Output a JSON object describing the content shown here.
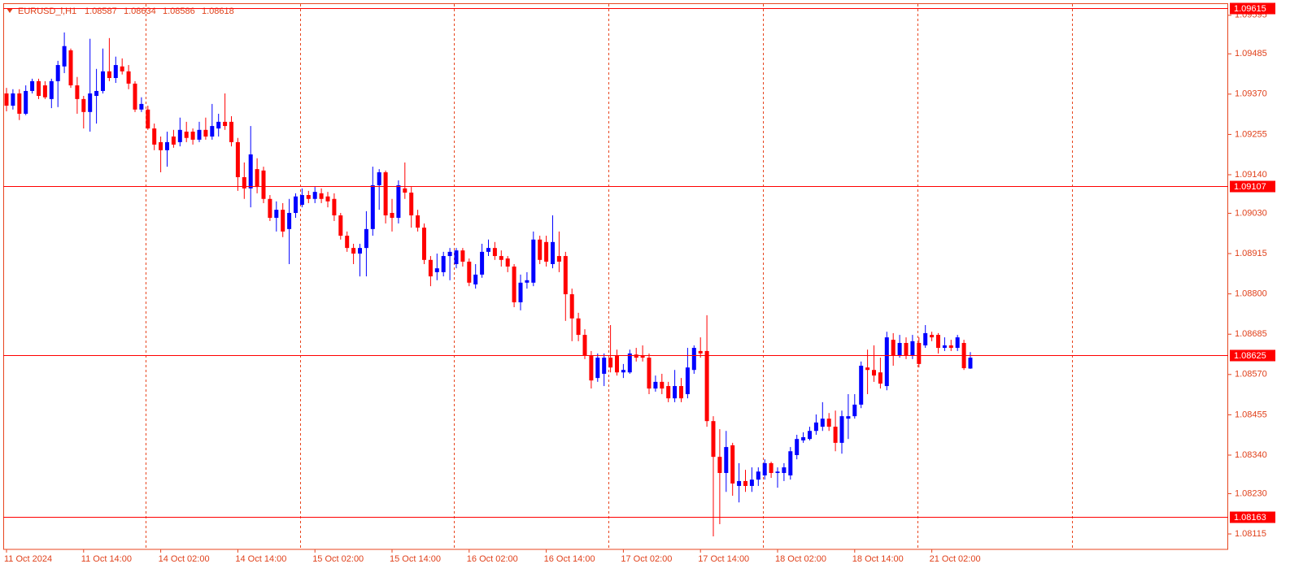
{
  "chart_data": {
    "type": "candlestick",
    "title": "EURUSD_i,H1",
    "up_color": "#0000ff",
    "down_color": "#ff0000",
    "level_color": "#ff0000",
    "levels": [
      1.09615,
      1.09107,
      1.08625,
      1.08163
    ],
    "ylim": [
      1.08071,
      1.09627
    ],
    "yticks": [
      1.09595,
      1.09485,
      {
        "value": 1.0937,
        "label": "1.09370"
      },
      1.09255,
      {
        "value": 1.0914,
        "label": "1.09140"
      },
      {
        "value": 1.0903,
        "label": "1.09030"
      },
      1.08915,
      {
        "value": 1.088,
        "label": "1.08800"
      },
      1.08685,
      {
        "value": 1.0857,
        "label": "1.08570"
      },
      1.08455,
      {
        "value": 1.0834,
        "label": "1.08340"
      },
      {
        "value": 1.0823,
        "label": "1.08230"
      },
      1.08115
    ],
    "categories": [
      "11 Oct 2024",
      null,
      null,
      null,
      null,
      null,
      null,
      null,
      null,
      null,
      null,
      null,
      "11 Oct 14:00",
      null,
      null,
      null,
      null,
      null,
      null,
      null,
      null,
      null,
      null,
      null,
      "14 Oct 02:00",
      null,
      null,
      null,
      null,
      null,
      null,
      null,
      null,
      null,
      null,
      null,
      "14 Oct 14:00",
      null,
      null,
      null,
      null,
      null,
      null,
      null,
      null,
      null,
      null,
      null,
      "15 Oct 02:00",
      null,
      null,
      null,
      null,
      null,
      null,
      null,
      null,
      null,
      null,
      null,
      "15 Oct 14:00",
      null,
      null,
      null,
      null,
      null,
      null,
      null,
      null,
      null,
      null,
      null,
      "16 Oct 02:00",
      null,
      null,
      null,
      null,
      null,
      null,
      null,
      null,
      null,
      null,
      null,
      "16 Oct 14:00",
      null,
      null,
      null,
      null,
      null,
      null,
      null,
      null,
      null,
      null,
      null,
      "17 Oct 02:00",
      null,
      null,
      null,
      null,
      null,
      null,
      null,
      null,
      null,
      null,
      null,
      "17 Oct 14:00",
      null,
      null,
      null,
      null,
      null,
      null,
      null,
      null,
      null,
      null,
      null,
      "18 Oct 02:00",
      null,
      null,
      null,
      null,
      null,
      null,
      null,
      null,
      null,
      null,
      null,
      "18 Oct 14:00",
      null,
      null,
      null,
      null,
      null,
      null,
      null,
      null,
      null,
      null,
      null,
      "21 Oct 02:00",
      null,
      null,
      null,
      null,
      null,
      null
    ],
    "open": [
      1.09372,
      1.09337,
      1.09372,
      1.09314,
      1.09379,
      1.09407,
      1.09395,
      1.09356,
      1.09407,
      1.09449,
      1.09495,
      1.09395,
      1.09356,
      1.09319,
      1.09365,
      1.09379,
      1.09435,
      1.09416,
      1.09449,
      1.09435,
      1.094,
      1.09326,
      1.09326,
      1.09272,
      1.09233,
      1.0921,
      1.09249,
      1.09233,
      1.09263,
      1.09263,
      1.0924,
      1.09268,
      1.09249,
      1.09272,
      1.09291,
      1.09291,
      1.09233,
      1.09133,
      1.09101,
      1.09156,
      1.09152,
      1.09071,
      1.09017,
      1.0904,
      1.08985,
      1.09031,
      1.09054,
      1.09082,
      1.09071,
      1.09087,
      1.09078,
      1.09071,
      1.09024,
      1.08966,
      1.08931,
      1.08915,
      1.08931,
      1.08985,
      1.0911,
      1.09147,
      1.09031,
      1.09017,
      1.09101,
      1.09089,
      1.09024,
      1.08989,
      1.08897,
      1.08862,
      1.08862,
      1.08908,
      1.08885,
      1.08924,
      1.08892,
      1.08827,
      1.08855,
      1.0892,
      1.08931,
      1.08908,
      1.08901,
      1.08878,
      1.08776,
      1.08832,
      1.08832,
      1.08955,
      1.08948,
      1.08885,
      1.08908,
      1.08908,
      1.08799,
      1.0873,
      1.08683,
      1.08623,
      1.0856,
      1.08572,
      1.08618,
      1.08623,
      1.08576,
      1.08576,
      1.08627,
      1.08623,
      1.08618,
      1.0853,
      1.08549,
      1.08537,
      1.08502,
      1.08537,
      1.08514,
      1.08583,
      1.08637,
      1.08637,
      1.08437,
      1.08335,
      1.08289,
      1.08368,
      1.08252,
      1.08266,
      1.08252,
      1.0827,
      1.08282,
      1.08317,
      1.08289,
      1.08289,
      1.08282,
      1.0834,
      1.08382,
      1.08386,
      1.08409,
      1.08421,
      1.08444,
      1.08421,
      1.08375,
      1.08444,
      1.08451,
      1.08484,
      1.0859,
      1.08583,
      1.08576,
      1.08537,
      1.08669,
      1.08623,
      1.0866,
      1.08623,
      1.0866,
      1.08653,
      1.08683,
      1.08683,
      1.08646,
      1.08653,
      1.08646,
      1.0866,
      1.08587
    ],
    "high": [
      1.09388,
      1.09384,
      1.09384,
      1.09395,
      1.09414,
      1.09414,
      1.09407,
      1.09414,
      1.09465,
      1.09546,
      1.095,
      1.09419,
      1.09365,
      1.09528,
      1.09442,
      1.095,
      1.0953,
      1.09477,
      1.09472,
      1.09453,
      1.09407,
      1.09361,
      1.09337,
      1.09286,
      1.09249,
      1.09263,
      1.09268,
      1.09303,
      1.09291,
      1.09272,
      1.09291,
      1.09303,
      1.09342,
      1.09314,
      1.09372,
      1.09307,
      1.09245,
      1.09175,
      1.09279,
      1.09187,
      1.09163,
      1.09082,
      1.09064,
      1.09059,
      1.09071,
      1.09087,
      1.09101,
      1.09094,
      1.09105,
      1.09101,
      1.09091,
      1.09087,
      1.09031,
      1.08978,
      1.08943,
      1.08943,
      1.09036,
      1.09163,
      1.09156,
      1.09152,
      1.09071,
      1.09124,
      1.09175,
      1.09105,
      1.0904,
      1.09001,
      1.08908,
      1.08915,
      1.0892,
      1.08931,
      1.08931,
      1.08931,
      1.08901,
      1.08885,
      1.08943,
      1.08955,
      1.08948,
      1.08924,
      1.08908,
      1.08885,
      1.08855,
      1.08862,
      1.08978,
      1.08966,
      1.08966,
      1.09024,
      1.08978,
      1.0892,
      1.08815,
      1.08746,
      1.08699,
      1.08637,
      1.0863,
      1.0863,
      1.08711,
      1.08641,
      1.086,
      1.08641,
      1.08646,
      1.08653,
      1.0863,
      1.08567,
      1.08572,
      1.08549,
      1.08583,
      1.0856,
      1.08646,
      1.08653,
      1.08676,
      1.08739,
      1.08451,
      1.08414,
      1.08409,
      1.08375,
      1.08317,
      1.08298,
      1.08305,
      1.08305,
      1.08328,
      1.08321,
      1.08305,
      1.08317,
      1.08363,
      1.08398,
      1.08405,
      1.08421,
      1.08456,
      1.08491,
      1.0846,
      1.08467,
      1.08467,
      1.08514,
      1.08514,
      1.08607,
      1.08641,
      1.08653,
      1.08618,
      1.08692,
      1.08688,
      1.08683,
      1.08676,
      1.08683,
      1.08676,
      1.08711,
      1.08692,
      1.08688,
      1.08676,
      1.08669,
      1.08683,
      1.08669,
      1.08634
    ],
    "low": [
      1.09321,
      1.09326,
      1.09296,
      1.0931,
      1.09372,
      1.09356,
      1.09356,
      1.0933,
      1.09333,
      1.0943,
      1.09388,
      1.09314,
      1.09272,
      1.09263,
      1.09286,
      1.09372,
      1.09407,
      1.09402,
      1.09426,
      1.09384,
      1.09319,
      1.09319,
      1.09268,
      1.0921,
      1.09147,
      1.09163,
      1.09217,
      1.09221,
      1.09233,
      1.09226,
      1.09233,
      1.0924,
      1.0924,
      1.09249,
      1.09268,
      1.09221,
      1.09094,
      1.09071,
      1.09047,
      1.09087,
      1.09059,
      1.09008,
      1.08978,
      1.08962,
      1.08885,
      1.09017,
      1.09047,
      1.09059,
      1.09059,
      1.09059,
      1.09047,
      1.09008,
      1.08955,
      1.0892,
      1.08885,
      1.0885,
      1.0885,
      1.08966,
      1.0904,
      1.09001,
      1.08978,
      1.09001,
      1.09071,
      1.08989,
      1.08978,
      1.08885,
      1.08822,
      1.08839,
      1.0885,
      1.08839,
      1.08873,
      1.08878,
      1.08822,
      1.08815,
      1.08846,
      1.08908,
      1.08897,
      1.08878,
      1.08862,
      1.08762,
      1.08753,
      1.08815,
      1.08822,
      1.08885,
      1.08878,
      1.08873,
      1.08862,
      1.08723,
      1.08665,
      1.08665,
      1.08614,
      1.0853,
      1.08549,
      1.08537,
      1.08576,
      1.08567,
      1.0856,
      1.08572,
      1.08607,
      1.08607,
      1.08514,
      1.08521,
      1.08514,
      1.08491,
      1.08491,
      1.08491,
      1.08502,
      1.08572,
      1.08618,
      1.08421,
      1.08108,
      1.08143,
      1.08235,
      1.08224,
      1.08205,
      1.08235,
      1.08235,
      1.08252,
      1.0827,
      1.08275,
      1.08247,
      1.08266,
      1.0827,
      1.08328,
      1.08375,
      1.08382,
      1.08398,
      1.08409,
      1.08409,
      1.08351,
      1.08344,
      1.08386,
      1.08444,
      1.08474,
      1.08514,
      1.08549,
      1.0853,
      1.08525,
      1.08595,
      1.08618,
      1.08614,
      1.08614,
      1.0859,
      1.08646,
      1.08665,
      1.0863,
      1.08637,
      1.08637,
      1.08637,
      1.08583,
      1.08586
    ],
    "close": [
      1.09337,
      1.09372,
      1.09314,
      1.09379,
      1.09407,
      1.09365,
      1.09361,
      1.09407,
      1.09453,
      1.09507,
      1.09395,
      1.09356,
      1.09319,
      1.09372,
      1.09379,
      1.09435,
      1.09416,
      1.09453,
      1.09435,
      1.094,
      1.09326,
      1.09342,
      1.09272,
      1.09226,
      1.0921,
      1.09233,
      1.09226,
      1.09268,
      1.09245,
      1.0924,
      1.09268,
      1.09249,
      1.09279,
      1.09291,
      1.09279,
      1.09233,
      1.09133,
      1.09101,
      1.09198,
      1.09105,
      1.09071,
      1.09017,
      1.0904,
      1.08978,
      1.09031,
      1.09078,
      1.09082,
      1.09071,
      1.09091,
      1.09071,
      1.09064,
      1.09024,
      1.08966,
      1.08931,
      1.08915,
      1.08931,
      1.08985,
      1.0911,
      1.09147,
      1.09024,
      1.09017,
      1.0911,
      1.09089,
      1.09024,
      1.08989,
      1.08897,
      1.0885,
      1.08873,
      1.08908,
      1.0892,
      1.08924,
      1.08892,
      1.08832,
      1.08855,
      1.0892,
      1.08931,
      1.08908,
      1.08897,
      1.08878,
      1.08776,
      1.08832,
      1.08839,
      1.08955,
      1.08897,
      1.08892,
      1.08948,
      1.08892,
      1.08799,
      1.0873,
      1.08683,
      1.08623,
      1.08553,
      1.08618,
      1.08618,
      1.0859,
      1.08576,
      1.08583,
      1.0863,
      1.08618,
      1.08618,
      1.0853,
      1.08549,
      1.0853,
      1.08502,
      1.08537,
      1.08502,
      1.0859,
      1.08646,
      1.0863,
      1.08437,
      1.08335,
      1.08289,
      1.08363,
      1.08259,
      1.08266,
      1.08252,
      1.0827,
      1.08293,
      1.08317,
      1.08289,
      1.08293,
      1.08305,
      1.08351,
      1.08386,
      1.08391,
      1.08409,
      1.08433,
      1.08444,
      1.08421,
      1.08375,
      1.08451,
      1.08451,
      1.08484,
      1.08595,
      1.08583,
      1.08567,
      1.08544,
      1.08676,
      1.08623,
      1.0866,
      1.08623,
      1.08665,
      1.086,
      1.08688,
      1.08676,
      1.08646,
      1.08653,
      1.08646,
      1.08676,
      1.08588,
      1.08618
    ]
  }
}
